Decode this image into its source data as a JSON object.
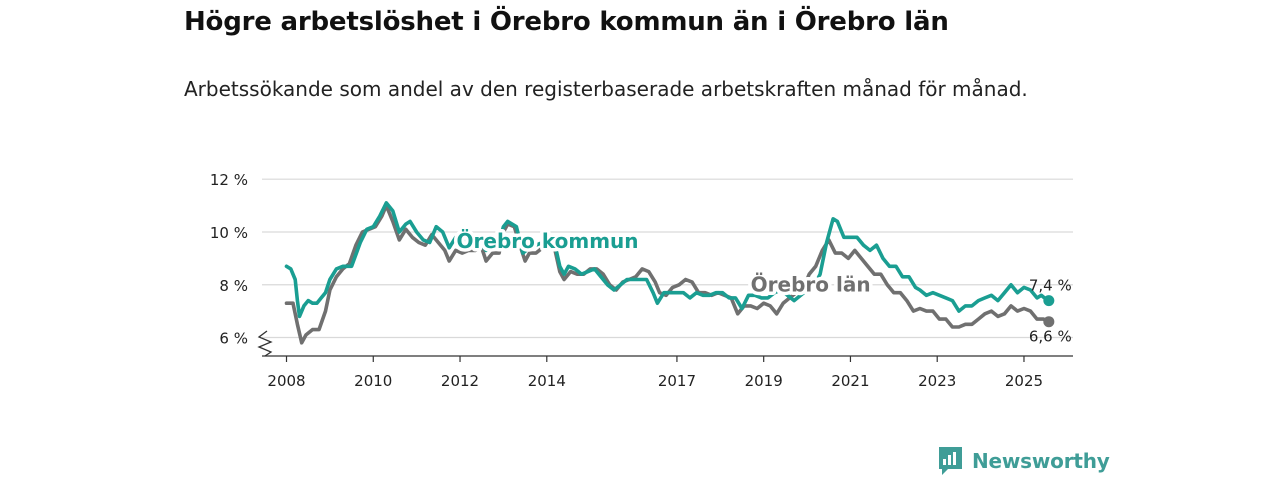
{
  "title": "Högre arbetslöshet i Örebro kommun än i Örebro län",
  "subtitle": "Arbetssökande som andel av den registerbaserade arbetskraften månad för månad.",
  "brand": {
    "name": "Newsworthy",
    "icon": "newsworthy-logo-icon"
  },
  "colors": {
    "kommun": "#1a9e92",
    "lan": "#707070",
    "grid": "#d9d9d9",
    "axis": "#333333"
  },
  "chart_data": {
    "type": "line",
    "title": "Högre arbetslöshet i Örebro kommun än i Örebro län",
    "xlabel": "",
    "ylabel": "",
    "xlim": [
      2007.85,
      2025.6
    ],
    "ylim": [
      5.3,
      12.5
    ],
    "y_ticks": [
      6,
      8,
      10,
      12
    ],
    "y_tick_labels": [
      "6 %",
      "8 %",
      "10 %",
      "12 %"
    ],
    "x_ticks": [
      2008,
      2010,
      2012,
      2014,
      2017,
      2019,
      2021,
      2023,
      2025
    ],
    "x_tick_labels": [
      "2008",
      "2010",
      "2012",
      "2014",
      "2017",
      "2019",
      "2021",
      "2023",
      "2025"
    ],
    "grid": true,
    "series": [
      {
        "name": "Örebro kommun",
        "label": "Örebro kommun",
        "end_label": "7,4 %",
        "points": [
          [
            2008.0,
            8.7
          ],
          [
            2008.1,
            8.6
          ],
          [
            2008.2,
            8.2
          ],
          [
            2008.25,
            7.4
          ],
          [
            2008.3,
            6.8
          ],
          [
            2008.4,
            7.2
          ],
          [
            2008.5,
            7.4
          ],
          [
            2008.6,
            7.3
          ],
          [
            2008.7,
            7.3
          ],
          [
            2008.8,
            7.5
          ],
          [
            2008.9,
            7.7
          ],
          [
            2009.0,
            8.2
          ],
          [
            2009.15,
            8.6
          ],
          [
            2009.3,
            8.7
          ],
          [
            2009.5,
            8.7
          ],
          [
            2009.7,
            9.6
          ],
          [
            2009.85,
            10.1
          ],
          [
            2010.0,
            10.2
          ],
          [
            2010.15,
            10.6
          ],
          [
            2010.3,
            11.1
          ],
          [
            2010.45,
            10.8
          ],
          [
            2010.6,
            10.0
          ],
          [
            2010.75,
            10.3
          ],
          [
            2010.85,
            10.4
          ],
          [
            2011.0,
            10.0
          ],
          [
            2011.15,
            9.7
          ],
          [
            2011.3,
            9.6
          ],
          [
            2011.45,
            10.2
          ],
          [
            2011.6,
            10.0
          ],
          [
            2011.75,
            9.4
          ],
          [
            2011.9,
            9.8
          ],
          [
            2012.05,
            9.7
          ],
          [
            2012.2,
            9.7
          ],
          [
            2012.35,
            9.6
          ],
          [
            2012.5,
            9.5
          ],
          [
            2012.6,
            9.3
          ],
          [
            2012.75,
            9.7
          ],
          [
            2012.9,
            9.6
          ],
          [
            2013.0,
            10.2
          ],
          [
            2013.1,
            10.4
          ],
          [
            2013.3,
            10.2
          ],
          [
            2013.45,
            9.2
          ],
          [
            2013.6,
            9.4
          ],
          [
            2013.75,
            9.5
          ],
          [
            2013.9,
            9.6
          ],
          [
            2014.0,
            9.9
          ],
          [
            2014.15,
            9.8
          ],
          [
            2014.3,
            8.7
          ],
          [
            2014.4,
            8.4
          ],
          [
            2014.5,
            8.7
          ],
          [
            2014.65,
            8.6
          ],
          [
            2014.8,
            8.4
          ],
          [
            2014.95,
            8.5
          ],
          [
            2015.1,
            8.6
          ],
          [
            2015.25,
            8.3
          ],
          [
            2015.4,
            8.0
          ],
          [
            2015.55,
            7.8
          ],
          [
            2015.7,
            8.0
          ],
          [
            2015.85,
            8.2
          ],
          [
            2016.0,
            8.2
          ],
          [
            2016.15,
            8.2
          ],
          [
            2016.3,
            8.2
          ],
          [
            2016.45,
            7.7
          ],
          [
            2016.55,
            7.3
          ],
          [
            2016.7,
            7.7
          ],
          [
            2016.85,
            7.7
          ],
          [
            2017.0,
            7.7
          ],
          [
            2017.15,
            7.7
          ],
          [
            2017.3,
            7.5
          ],
          [
            2017.45,
            7.7
          ],
          [
            2017.6,
            7.6
          ],
          [
            2017.75,
            7.6
          ],
          [
            2017.9,
            7.7
          ],
          [
            2018.05,
            7.7
          ],
          [
            2018.2,
            7.5
          ],
          [
            2018.35,
            7.5
          ],
          [
            2018.5,
            7.1
          ],
          [
            2018.65,
            7.6
          ],
          [
            2018.8,
            7.6
          ],
          [
            2018.95,
            7.5
          ],
          [
            2019.1,
            7.5
          ],
          [
            2019.25,
            7.7
          ],
          [
            2019.4,
            7.8
          ],
          [
            2019.55,
            7.6
          ],
          [
            2019.7,
            7.4
          ],
          [
            2019.85,
            7.6
          ],
          [
            2020.0,
            7.8
          ],
          [
            2020.15,
            7.9
          ],
          [
            2020.3,
            8.4
          ],
          [
            2020.45,
            9.6
          ],
          [
            2020.6,
            10.5
          ],
          [
            2020.7,
            10.4
          ],
          [
            2020.85,
            9.8
          ],
          [
            2021.0,
            9.8
          ],
          [
            2021.15,
            9.8
          ],
          [
            2021.3,
            9.5
          ],
          [
            2021.45,
            9.3
          ],
          [
            2021.6,
            9.5
          ],
          [
            2021.75,
            9.0
          ],
          [
            2021.9,
            8.7
          ],
          [
            2022.05,
            8.7
          ],
          [
            2022.2,
            8.3
          ],
          [
            2022.35,
            8.3
          ],
          [
            2022.5,
            7.9
          ],
          [
            2022.6,
            7.8
          ],
          [
            2022.75,
            7.6
          ],
          [
            2022.9,
            7.7
          ],
          [
            2023.05,
            7.6
          ],
          [
            2023.2,
            7.5
          ],
          [
            2023.35,
            7.4
          ],
          [
            2023.5,
            7.0
          ],
          [
            2023.65,
            7.2
          ],
          [
            2023.8,
            7.2
          ],
          [
            2023.95,
            7.4
          ],
          [
            2024.1,
            7.5
          ],
          [
            2024.25,
            7.6
          ],
          [
            2024.4,
            7.4
          ],
          [
            2024.55,
            7.7
          ],
          [
            2024.7,
            8.0
          ],
          [
            2024.85,
            7.7
          ],
          [
            2025.0,
            7.9
          ],
          [
            2025.15,
            7.8
          ],
          [
            2025.3,
            7.5
          ],
          [
            2025.4,
            7.6
          ],
          [
            2025.55,
            7.4
          ]
        ]
      },
      {
        "name": "Örebro län",
        "label": "Örebro län",
        "end_label": "6,6 %",
        "points": [
          [
            2008.0,
            7.3
          ],
          [
            2008.15,
            7.3
          ],
          [
            2008.25,
            6.5
          ],
          [
            2008.35,
            5.8
          ],
          [
            2008.45,
            6.1
          ],
          [
            2008.6,
            6.3
          ],
          [
            2008.75,
            6.3
          ],
          [
            2008.9,
            7.0
          ],
          [
            2009.0,
            7.8
          ],
          [
            2009.15,
            8.3
          ],
          [
            2009.3,
            8.6
          ],
          [
            2009.45,
            8.8
          ],
          [
            2009.6,
            9.5
          ],
          [
            2009.75,
            10.0
          ],
          [
            2009.9,
            10.1
          ],
          [
            2010.05,
            10.2
          ],
          [
            2010.2,
            10.6
          ],
          [
            2010.3,
            11.0
          ],
          [
            2010.45,
            10.4
          ],
          [
            2010.6,
            9.7
          ],
          [
            2010.75,
            10.1
          ],
          [
            2010.9,
            9.8
          ],
          [
            2011.05,
            9.6
          ],
          [
            2011.2,
            9.5
          ],
          [
            2011.35,
            9.9
          ],
          [
            2011.5,
            9.6
          ],
          [
            2011.65,
            9.3
          ],
          [
            2011.75,
            8.9
          ],
          [
            2011.9,
            9.3
          ],
          [
            2012.05,
            9.2
          ],
          [
            2012.2,
            9.3
          ],
          [
            2012.35,
            9.3
          ],
          [
            2012.5,
            9.4
          ],
          [
            2012.6,
            8.9
          ],
          [
            2012.75,
            9.2
          ],
          [
            2012.9,
            9.2
          ],
          [
            2013.0,
            10.0
          ],
          [
            2013.1,
            10.3
          ],
          [
            2013.25,
            10.2
          ],
          [
            2013.4,
            9.4
          ],
          [
            2013.5,
            8.9
          ],
          [
            2013.6,
            9.2
          ],
          [
            2013.75,
            9.2
          ],
          [
            2013.9,
            9.4
          ],
          [
            2014.0,
            9.8
          ],
          [
            2014.15,
            9.6
          ],
          [
            2014.3,
            8.5
          ],
          [
            2014.4,
            8.2
          ],
          [
            2014.55,
            8.5
          ],
          [
            2014.7,
            8.4
          ],
          [
            2014.85,
            8.4
          ],
          [
            2015.0,
            8.6
          ],
          [
            2015.15,
            8.6
          ],
          [
            2015.3,
            8.4
          ],
          [
            2015.45,
            8.0
          ],
          [
            2015.6,
            7.8
          ],
          [
            2015.75,
            8.1
          ],
          [
            2015.9,
            8.2
          ],
          [
            2016.05,
            8.3
          ],
          [
            2016.2,
            8.6
          ],
          [
            2016.35,
            8.5
          ],
          [
            2016.5,
            8.1
          ],
          [
            2016.6,
            7.7
          ],
          [
            2016.75,
            7.6
          ],
          [
            2016.9,
            7.9
          ],
          [
            2017.05,
            8.0
          ],
          [
            2017.2,
            8.2
          ],
          [
            2017.35,
            8.1
          ],
          [
            2017.5,
            7.7
          ],
          [
            2017.65,
            7.7
          ],
          [
            2017.8,
            7.6
          ],
          [
            2017.95,
            7.7
          ],
          [
            2018.1,
            7.6
          ],
          [
            2018.25,
            7.5
          ],
          [
            2018.4,
            6.9
          ],
          [
            2018.55,
            7.2
          ],
          [
            2018.7,
            7.2
          ],
          [
            2018.85,
            7.1
          ],
          [
            2019.0,
            7.3
          ],
          [
            2019.15,
            7.2
          ],
          [
            2019.3,
            6.9
          ],
          [
            2019.45,
            7.3
          ],
          [
            2019.6,
            7.5
          ],
          [
            2019.75,
            7.7
          ],
          [
            2019.9,
            7.8
          ],
          [
            2020.05,
            8.4
          ],
          [
            2020.2,
            8.7
          ],
          [
            2020.35,
            9.3
          ],
          [
            2020.5,
            9.7
          ],
          [
            2020.65,
            9.2
          ],
          [
            2020.8,
            9.2
          ],
          [
            2020.95,
            9.0
          ],
          [
            2021.1,
            9.3
          ],
          [
            2021.25,
            9.0
          ],
          [
            2021.4,
            8.7
          ],
          [
            2021.55,
            8.4
          ],
          [
            2021.7,
            8.4
          ],
          [
            2021.85,
            8.0
          ],
          [
            2022.0,
            7.7
          ],
          [
            2022.15,
            7.7
          ],
          [
            2022.3,
            7.4
          ],
          [
            2022.45,
            7.0
          ],
          [
            2022.6,
            7.1
          ],
          [
            2022.75,
            7.0
          ],
          [
            2022.9,
            7.0
          ],
          [
            2023.05,
            6.7
          ],
          [
            2023.2,
            6.7
          ],
          [
            2023.35,
            6.4
          ],
          [
            2023.5,
            6.4
          ],
          [
            2023.65,
            6.5
          ],
          [
            2023.8,
            6.5
          ],
          [
            2023.95,
            6.7
          ],
          [
            2024.1,
            6.9
          ],
          [
            2024.25,
            7.0
          ],
          [
            2024.4,
            6.8
          ],
          [
            2024.55,
            6.9
          ],
          [
            2024.7,
            7.2
          ],
          [
            2024.85,
            7.0
          ],
          [
            2025.0,
            7.1
          ],
          [
            2025.15,
            7.0
          ],
          [
            2025.3,
            6.7
          ],
          [
            2025.45,
            6.7
          ],
          [
            2025.55,
            6.6
          ]
        ]
      }
    ]
  }
}
